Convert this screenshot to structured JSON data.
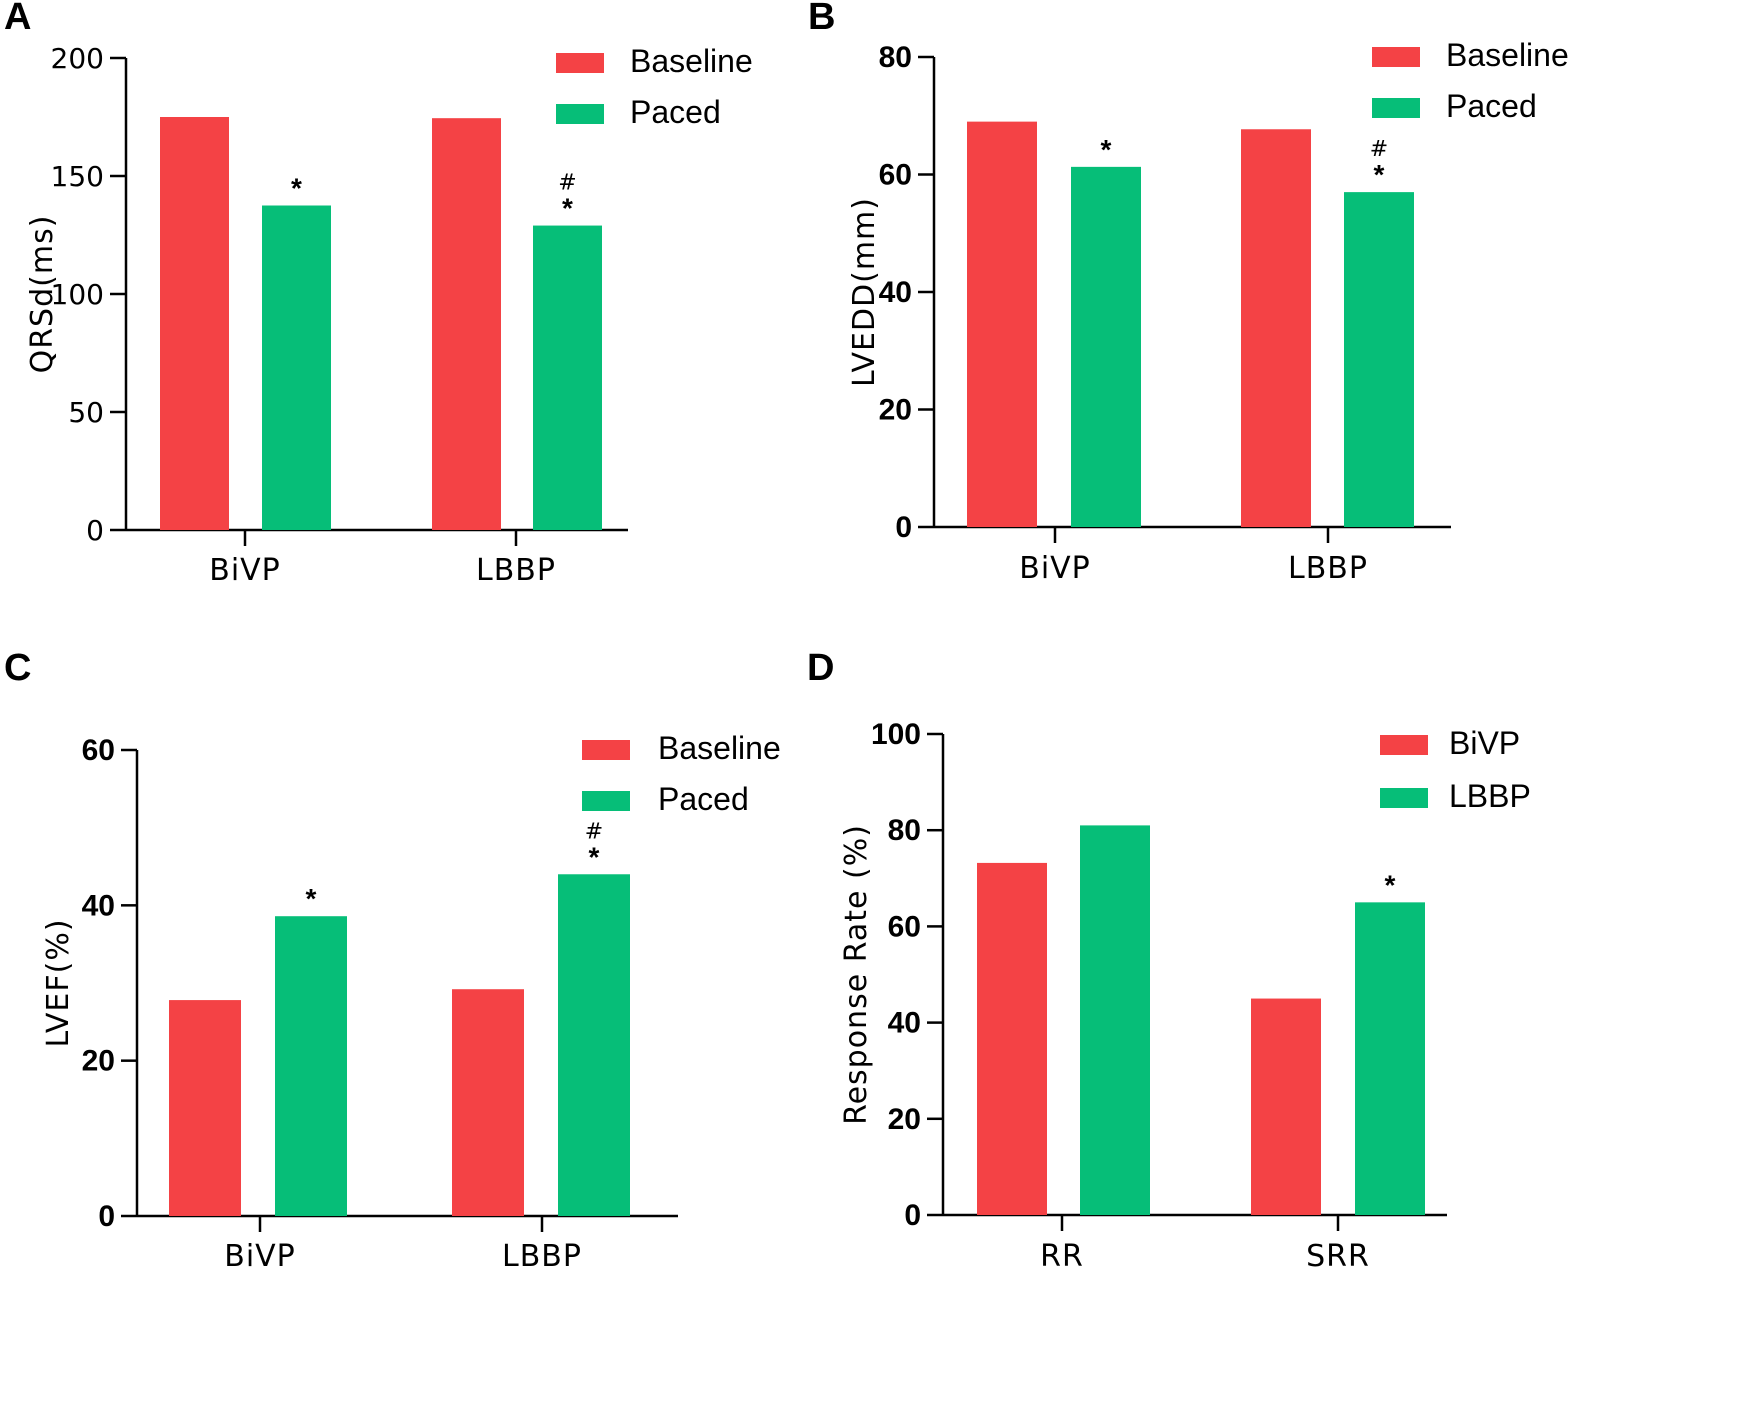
{
  "colors": {
    "series1": "#f44245",
    "series2": "#06be78",
    "axis": "#000000"
  },
  "chart_data": [
    {
      "panel": "A",
      "type": "bar",
      "categories": [
        "BiVP",
        "LBBP"
      ],
      "series": [
        {
          "name": "Baseline",
          "values": [
            175,
            174.5
          ]
        },
        {
          "name": "Paced",
          "values": [
            137.5,
            129
          ]
        }
      ],
      "annotations": [
        [
          "",
          "*"
        ],
        [
          "",
          "*"
        ]
      ],
      "hash": [
        [
          false,
          false
        ],
        [
          false,
          true
        ]
      ],
      "ylabel": "QRSd(ms)",
      "xlabel": "",
      "ylim": [
        0,
        200
      ],
      "yticks": [
        "0",
        "50",
        "100",
        "150",
        "200"
      ],
      "bold_ticks": false,
      "legend": [
        "Baseline",
        "Paced"
      ],
      "legend_position": "top-right"
    },
    {
      "panel": "B",
      "type": "bar",
      "categories": [
        "BiVP",
        "LBBP"
      ],
      "series": [
        {
          "name": "Baseline",
          "values": [
            69,
            67.7
          ]
        },
        {
          "name": "Paced",
          "values": [
            61.3,
            57
          ]
        }
      ],
      "annotations": [
        [
          "",
          "*"
        ],
        [
          "",
          "*"
        ]
      ],
      "hash": [
        [
          false,
          false
        ],
        [
          false,
          true
        ]
      ],
      "ylabel": "LVEDD(mm)",
      "xlabel": "",
      "ylim": [
        0,
        80
      ],
      "yticks": [
        "0",
        "20",
        "40",
        "60",
        "80"
      ],
      "bold_ticks": true,
      "legend": [
        "Baseline",
        "Paced"
      ],
      "legend_position": "top-right"
    },
    {
      "panel": "C",
      "type": "bar",
      "categories": [
        "BiVP",
        "LBBP"
      ],
      "series": [
        {
          "name": "Baseline",
          "values": [
            27.8,
            29.2
          ]
        },
        {
          "name": "Paced",
          "values": [
            38.6,
            44
          ]
        }
      ],
      "annotations": [
        [
          "",
          "*"
        ],
        [
          "",
          "*"
        ]
      ],
      "hash": [
        [
          false,
          false
        ],
        [
          false,
          true
        ]
      ],
      "ylabel": "LVEF(%)",
      "xlabel": "",
      "ylim": [
        0,
        60
      ],
      "yticks": [
        "0",
        "20",
        "40",
        "60"
      ],
      "bold_ticks": true,
      "legend": [
        "Baseline",
        "Paced"
      ],
      "legend_position": "top-right"
    },
    {
      "panel": "D",
      "type": "bar",
      "categories": [
        "RR",
        "SRR"
      ],
      "series": [
        {
          "name": "BiVP",
          "values": [
            73.2,
            45
          ]
        },
        {
          "name": "LBBP",
          "values": [
            81,
            65
          ]
        }
      ],
      "annotations": [
        [
          "",
          ""
        ],
        [
          "",
          "*"
        ]
      ],
      "hash": [
        [
          false,
          false
        ],
        [
          false,
          false
        ]
      ],
      "ylabel": "Response Rate (%)",
      "xlabel": "",
      "ylim": [
        0,
        100
      ],
      "yticks": [
        "0",
        "20",
        "40",
        "60",
        "80",
        "100"
      ],
      "bold_ticks": true,
      "legend": [
        "BiVP",
        "LBBP"
      ],
      "legend_position": "top-right"
    }
  ],
  "panels": {
    "a": "A",
    "b": "B",
    "c": "C",
    "d": "D"
  },
  "hash_symbol": "#"
}
